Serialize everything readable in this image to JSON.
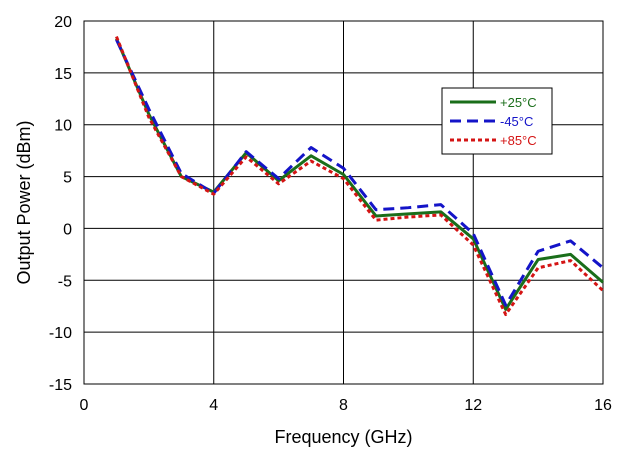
{
  "chart_data": {
    "type": "line",
    "title": "",
    "xlabel": "Frequency (GHz)",
    "ylabel": "Output Power (dBm)",
    "xlim": [
      0,
      16
    ],
    "ylim": [
      -15,
      20
    ],
    "xticks": [
      0,
      4,
      8,
      12,
      16
    ],
    "yticks": [
      -15,
      -10,
      -5,
      0,
      5,
      10,
      15,
      20
    ],
    "grid": true,
    "legend_position": "right",
    "x": [
      1,
      2,
      3,
      4,
      5,
      6,
      7,
      8,
      9,
      10,
      11,
      12,
      13,
      14,
      15,
      16
    ],
    "series": [
      {
        "name": "+25°C",
        "color": "#1a6e1a",
        "dash": "solid",
        "values": [
          18.3,
          11.0,
          5.0,
          3.5,
          7.3,
          4.6,
          7.0,
          5.2,
          1.2,
          1.4,
          1.6,
          -1.0,
          -7.8,
          -3.0,
          -2.5,
          -5.2
        ]
      },
      {
        "name": "-45°C",
        "color": "#1414c8",
        "dash": "long",
        "values": [
          18.2,
          11.5,
          5.3,
          3.4,
          7.4,
          4.8,
          7.8,
          5.8,
          1.8,
          2.0,
          2.3,
          -0.5,
          -7.4,
          -2.2,
          -1.2,
          -3.8
        ]
      },
      {
        "name": "+85°C",
        "color": "#d41414",
        "dash": "short",
        "values": [
          18.5,
          10.7,
          5.0,
          3.3,
          6.9,
          4.3,
          6.5,
          4.8,
          0.8,
          1.1,
          1.3,
          -1.6,
          -8.3,
          -3.8,
          -3.1,
          -6.0
        ]
      }
    ]
  }
}
